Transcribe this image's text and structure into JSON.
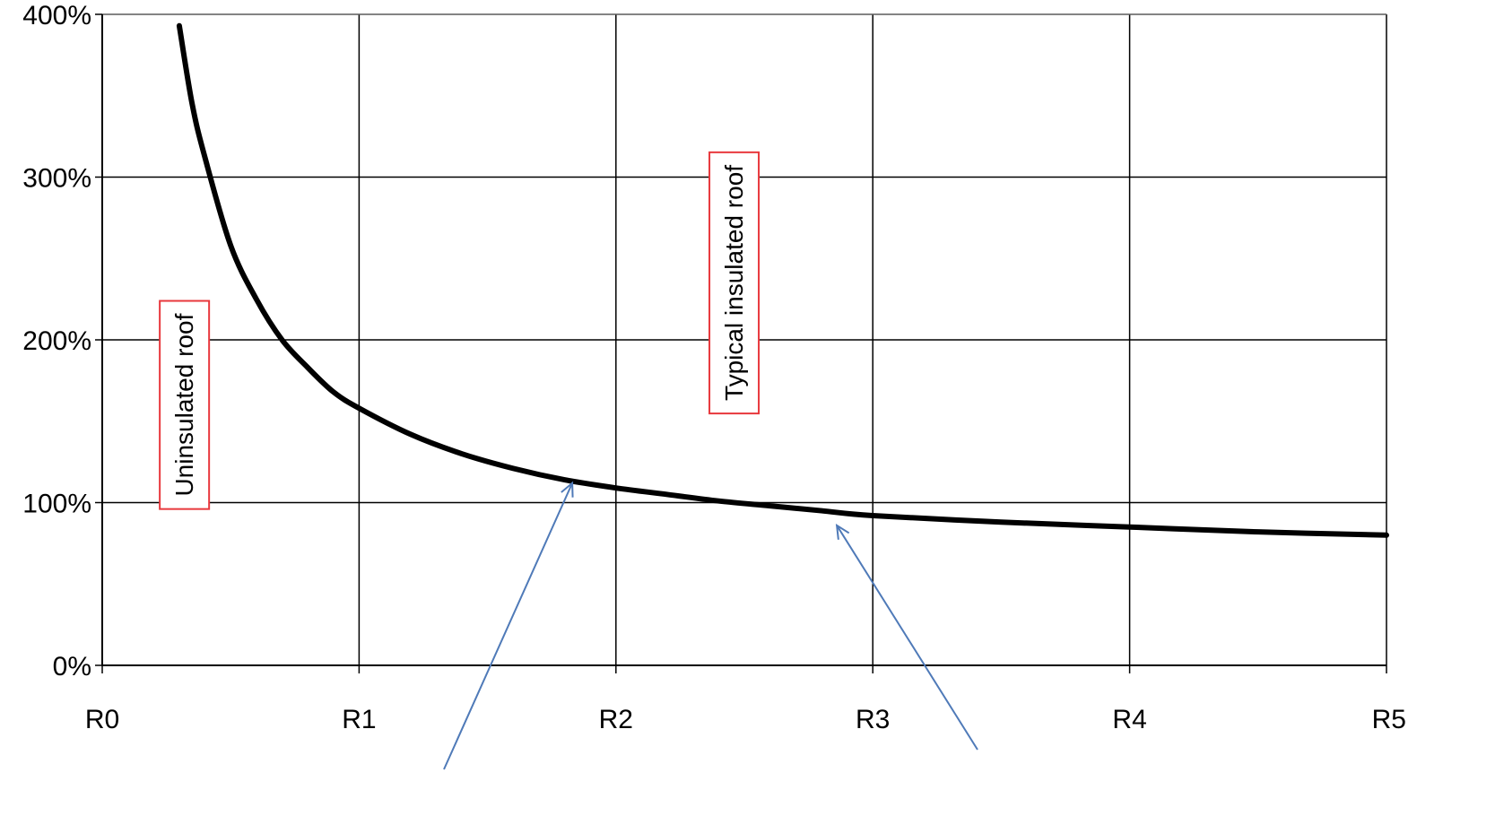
{
  "chart_data": {
    "type": "line",
    "title": "",
    "xlabel": "",
    "ylabel": "",
    "x_tick_labels": [
      "R0",
      "R1",
      "R2",
      "R3",
      "R4",
      "R5"
    ],
    "x_ticks": [
      0,
      1,
      2,
      3,
      4,
      5
    ],
    "y_tick_labels": [
      "0%",
      "100%",
      "200%",
      "300%",
      "400%"
    ],
    "y_ticks": [
      0,
      100,
      200,
      300,
      400
    ],
    "xlim": [
      0,
      5
    ],
    "ylim": [
      0,
      400
    ],
    "grid": true,
    "colors": {
      "line": "#000000",
      "grid": "#000000",
      "annotation_border": "#e8383d",
      "arrow": "#4f7ab8"
    },
    "series": [
      {
        "x": [
          0.3,
          0.35,
          0.4,
          0.5,
          0.6,
          0.7,
          0.8,
          0.9,
          1.0,
          1.2,
          1.4,
          1.6,
          1.8,
          2.0,
          2.2,
          2.4,
          2.6,
          2.8,
          3.0,
          3.5,
          4.0,
          4.5,
          5.0
        ],
        "y": [
          393,
          345,
          312,
          258,
          225,
          200,
          183,
          168,
          158,
          142,
          130,
          121,
          114,
          109,
          105,
          101,
          98,
          95,
          92,
          88,
          85,
          82,
          80
        ]
      }
    ],
    "annotations": [
      {
        "text": "Uninsulated roof",
        "x": 0.32,
        "y": 160,
        "orientation": "vertical"
      },
      {
        "text": "Typical insulated roof",
        "x": 2.46,
        "y": 235,
        "orientation": "vertical"
      }
    ],
    "arrows": [
      {
        "tip_x": 1.83,
        "tip_y": 112
      },
      {
        "tip_x": 2.86,
        "tip_y": 86
      }
    ]
  }
}
